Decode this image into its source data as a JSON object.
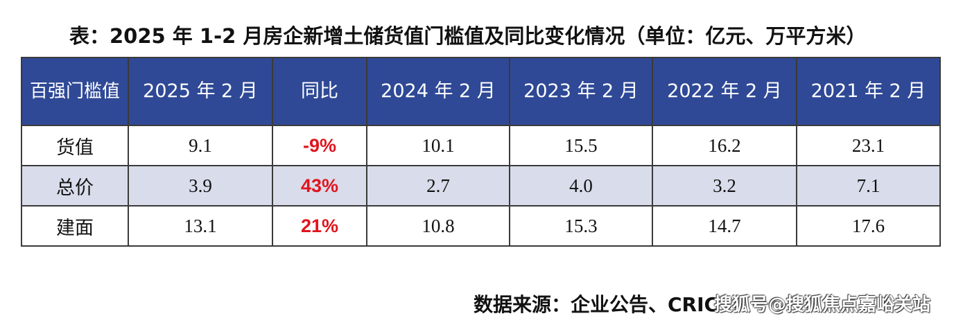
{
  "title": "表：2025 年 1-2 月房企新增土储货值门槛值及同比变化情况（单位：亿元、万平方米）",
  "table": {
    "header": {
      "corner": "百强门槛值",
      "columns": [
        "2025 年 2 月",
        "同比",
        "2024 年 2 月",
        "2023 年 2 月",
        "2022 年 2 月",
        "2021 年 2 月"
      ]
    },
    "rows": [
      {
        "label": "货值",
        "values": [
          "9.1",
          "-9%",
          "10.1",
          "15.5",
          "16.2",
          "23.1"
        ]
      },
      {
        "label": "总价",
        "values": [
          "3.9",
          "43%",
          "2.7",
          "4.0",
          "3.2",
          "7.1"
        ]
      },
      {
        "label": "建面",
        "values": [
          "13.1",
          "21%",
          "10.8",
          "15.3",
          "14.7",
          "17.6"
        ]
      }
    ]
  },
  "source": "数据来源：企业公告、CRIC",
  "watermark": "搜狐号@搜狐焦点嘉峪关站",
  "colors": {
    "header_bg": "#2f4996",
    "alt_row_bg": "#d9dcea",
    "yoy_text": "#e0141e"
  }
}
